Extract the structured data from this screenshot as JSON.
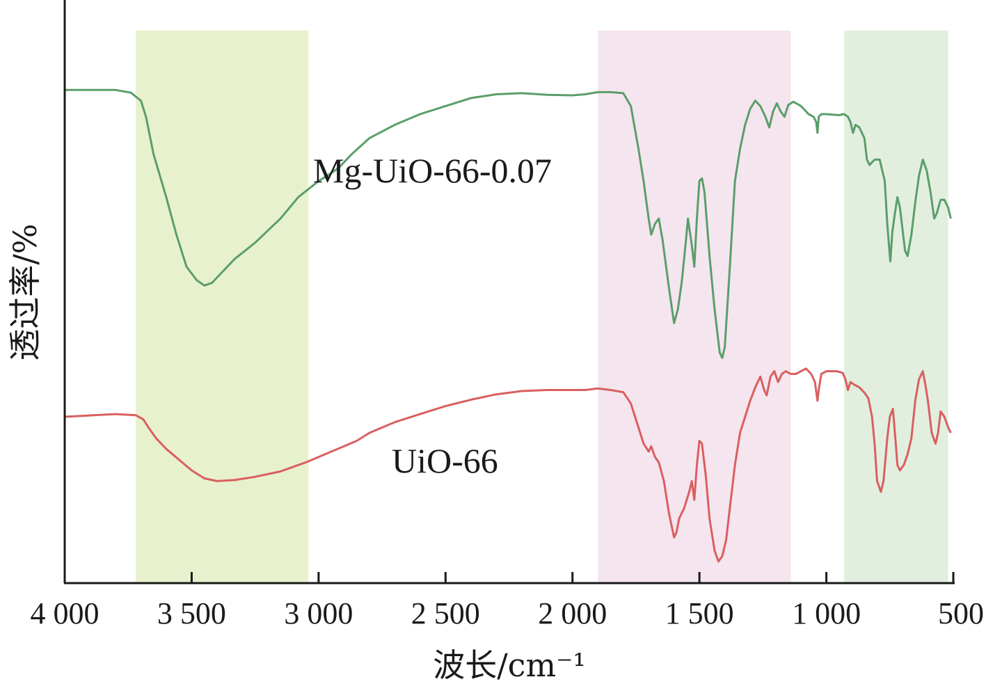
{
  "chart_data": {
    "type": "line",
    "xlabel": "波长/cm⁻¹",
    "ylabel": "透过率/%",
    "xlim": [
      4000,
      500
    ],
    "xaxis_reversed": true,
    "ylim": [
      0,
      100
    ],
    "y_ticks_shown": false,
    "grid": false,
    "legend": "none",
    "x_ticks": [
      {
        "value": 4000,
        "label": "4 000"
      },
      {
        "value": 3500,
        "label": "3 500"
      },
      {
        "value": 3000,
        "label": "3 000"
      },
      {
        "value": 2500,
        "label": "2 500"
      },
      {
        "value": 2000,
        "label": "2 000"
      },
      {
        "value": 1500,
        "label": "1 500"
      },
      {
        "value": 1000,
        "label": "1 000"
      },
      {
        "value": 500,
        "label": "500"
      }
    ],
    "highlight_bands": [
      {
        "x0": 3720,
        "x1": 3040,
        "color": "#e8f1cd"
      },
      {
        "x0": 1900,
        "x1": 1140,
        "color": "#f5e5ef"
      },
      {
        "x0": 930,
        "x1": 520,
        "color": "#e2efdf"
      }
    ],
    "series": [
      {
        "name": "Mg-UiO-66-0.07",
        "color": "#5a9e6a",
        "points": [
          [
            4000,
            91
          ],
          [
            3800,
            91
          ],
          [
            3740,
            90.5
          ],
          [
            3700,
            89
          ],
          [
            3680,
            86
          ],
          [
            3650,
            79
          ],
          [
            3600,
            71
          ],
          [
            3560,
            64
          ],
          [
            3520,
            58
          ],
          [
            3480,
            55.5
          ],
          [
            3450,
            54.5
          ],
          [
            3420,
            55
          ],
          [
            3380,
            57
          ],
          [
            3330,
            59.5
          ],
          [
            3250,
            62.5
          ],
          [
            3150,
            67
          ],
          [
            3080,
            71
          ],
          [
            3000,
            74
          ],
          [
            2950,
            75.5
          ],
          [
            2920,
            76.5
          ],
          [
            2870,
            79
          ],
          [
            2800,
            82
          ],
          [
            2700,
            84.5
          ],
          [
            2600,
            86.5
          ],
          [
            2500,
            88
          ],
          [
            2400,
            89.5
          ],
          [
            2300,
            90.2
          ],
          [
            2200,
            90.4
          ],
          [
            2100,
            90.1
          ],
          [
            2000,
            90
          ],
          [
            1950,
            90.2
          ],
          [
            1900,
            90.6
          ],
          [
            1850,
            90.6
          ],
          [
            1800,
            90.4
          ],
          [
            1770,
            88
          ],
          [
            1740,
            80
          ],
          [
            1720,
            74
          ],
          [
            1700,
            67
          ],
          [
            1690,
            64
          ],
          [
            1675,
            66
          ],
          [
            1660,
            67
          ],
          [
            1645,
            63
          ],
          [
            1620,
            54
          ],
          [
            1600,
            47.5
          ],
          [
            1585,
            50
          ],
          [
            1570,
            55
          ],
          [
            1555,
            62
          ],
          [
            1545,
            67
          ],
          [
            1530,
            62
          ],
          [
            1520,
            58
          ],
          [
            1510,
            67
          ],
          [
            1500,
            74
          ],
          [
            1490,
            74.5
          ],
          [
            1480,
            72
          ],
          [
            1460,
            60
          ],
          [
            1440,
            50
          ],
          [
            1420,
            42
          ],
          [
            1410,
            41
          ],
          [
            1400,
            43
          ],
          [
            1380,
            58
          ],
          [
            1360,
            74
          ],
          [
            1340,
            80
          ],
          [
            1320,
            84.5
          ],
          [
            1300,
            87.5
          ],
          [
            1280,
            89
          ],
          [
            1260,
            88
          ],
          [
            1240,
            86
          ],
          [
            1225,
            84
          ],
          [
            1210,
            87
          ],
          [
            1195,
            88.5
          ],
          [
            1180,
            87
          ],
          [
            1165,
            86
          ],
          [
            1150,
            88.2
          ],
          [
            1130,
            88.8
          ],
          [
            1100,
            88
          ],
          [
            1070,
            86.5
          ],
          [
            1050,
            86
          ],
          [
            1040,
            85
          ],
          [
            1035,
            83
          ],
          [
            1030,
            86
          ],
          [
            1020,
            86.5
          ],
          [
            1000,
            86.5
          ],
          [
            950,
            86.3
          ],
          [
            930,
            86.5
          ],
          [
            915,
            86
          ],
          [
            905,
            85
          ],
          [
            895,
            83
          ],
          [
            885,
            84.5
          ],
          [
            870,
            84
          ],
          [
            850,
            82
          ],
          [
            840,
            78
          ],
          [
            830,
            77
          ],
          [
            810,
            78
          ],
          [
            790,
            78
          ],
          [
            770,
            74
          ],
          [
            760,
            66
          ],
          [
            748,
            59
          ],
          [
            740,
            64.5
          ],
          [
            730,
            68
          ],
          [
            720,
            71
          ],
          [
            710,
            69
          ],
          [
            700,
            65
          ],
          [
            690,
            61
          ],
          [
            680,
            60
          ],
          [
            665,
            64
          ],
          [
            650,
            70
          ],
          [
            635,
            75
          ],
          [
            620,
            78
          ],
          [
            605,
            76
          ],
          [
            590,
            72
          ],
          [
            575,
            67
          ],
          [
            565,
            68
          ],
          [
            550,
            70.5
          ],
          [
            535,
            70.5
          ],
          [
            520,
            69
          ],
          [
            510,
            67
          ]
        ]
      },
      {
        "name": "UiO-66",
        "color": "#d95f5f",
        "points": [
          [
            4000,
            30
          ],
          [
            3800,
            30.5
          ],
          [
            3720,
            30.3
          ],
          [
            3690,
            29.5
          ],
          [
            3670,
            28
          ],
          [
            3640,
            26
          ],
          [
            3600,
            24
          ],
          [
            3550,
            22
          ],
          [
            3500,
            20
          ],
          [
            3450,
            18.5
          ],
          [
            3400,
            18
          ],
          [
            3330,
            18.2
          ],
          [
            3250,
            18.8
          ],
          [
            3150,
            19.8
          ],
          [
            3080,
            21
          ],
          [
            3050,
            21.5
          ],
          [
            3000,
            22.5
          ],
          [
            2950,
            23.5
          ],
          [
            2850,
            25.5
          ],
          [
            2800,
            27
          ],
          [
            2700,
            29
          ],
          [
            2600,
            30.5
          ],
          [
            2500,
            32
          ],
          [
            2400,
            33.2
          ],
          [
            2300,
            34.2
          ],
          [
            2200,
            34.8
          ],
          [
            2100,
            35
          ],
          [
            2000,
            35
          ],
          [
            1950,
            35
          ],
          [
            1900,
            35.3
          ],
          [
            1850,
            35
          ],
          [
            1800,
            34.6
          ],
          [
            1770,
            32.5
          ],
          [
            1740,
            28
          ],
          [
            1720,
            25
          ],
          [
            1700,
            23.5
          ],
          [
            1690,
            24.5
          ],
          [
            1675,
            22.5
          ],
          [
            1660,
            21.5
          ],
          [
            1640,
            18
          ],
          [
            1620,
            12
          ],
          [
            1600,
            7.5
          ],
          [
            1590,
            8.5
          ],
          [
            1580,
            11
          ],
          [
            1560,
            13
          ],
          [
            1540,
            16
          ],
          [
            1530,
            18
          ],
          [
            1520,
            14.5
          ],
          [
            1510,
            21
          ],
          [
            1500,
            25.5
          ],
          [
            1490,
            25
          ],
          [
            1475,
            19
          ],
          [
            1460,
            11
          ],
          [
            1440,
            5
          ],
          [
            1425,
            3
          ],
          [
            1410,
            4
          ],
          [
            1395,
            7
          ],
          [
            1380,
            13
          ],
          [
            1360,
            21
          ],
          [
            1340,
            27
          ],
          [
            1320,
            30
          ],
          [
            1300,
            33
          ],
          [
            1280,
            35.5
          ],
          [
            1260,
            37.5
          ],
          [
            1245,
            35
          ],
          [
            1235,
            34
          ],
          [
            1220,
            37.5
          ],
          [
            1205,
            38.5
          ],
          [
            1190,
            36.5
          ],
          [
            1175,
            38
          ],
          [
            1160,
            38.5
          ],
          [
            1140,
            38
          ],
          [
            1120,
            38
          ],
          [
            1100,
            38.5
          ],
          [
            1080,
            39
          ],
          [
            1060,
            38
          ],
          [
            1045,
            36.5
          ],
          [
            1035,
            33
          ],
          [
            1030,
            35
          ],
          [
            1020,
            38
          ],
          [
            1000,
            38.5
          ],
          [
            960,
            38.5
          ],
          [
            935,
            38.2
          ],
          [
            925,
            37
          ],
          [
            915,
            35
          ],
          [
            905,
            36.5
          ],
          [
            890,
            36
          ],
          [
            870,
            35.5
          ],
          [
            850,
            34.5
          ],
          [
            835,
            33.5
          ],
          [
            820,
            30
          ],
          [
            810,
            25
          ],
          [
            800,
            18
          ],
          [
            785,
            16
          ],
          [
            775,
            18
          ],
          [
            760,
            26
          ],
          [
            750,
            30
          ],
          [
            738,
            31.5
          ],
          [
            730,
            27
          ],
          [
            720,
            21
          ],
          [
            710,
            20
          ],
          [
            695,
            21
          ],
          [
            680,
            23
          ],
          [
            665,
            26
          ],
          [
            650,
            33
          ],
          [
            635,
            37
          ],
          [
            620,
            38.5
          ],
          [
            610,
            36
          ],
          [
            600,
            33
          ],
          [
            585,
            27
          ],
          [
            570,
            25
          ],
          [
            560,
            27
          ],
          [
            550,
            31
          ],
          [
            535,
            30
          ],
          [
            520,
            28
          ],
          [
            510,
            27
          ]
        ]
      }
    ],
    "annotations": [
      {
        "text": "Mg-UiO-66-0.07",
        "near_series": "Mg-UiO-66-0.07"
      },
      {
        "text": "UiO-66",
        "near_series": "UiO-66"
      }
    ]
  }
}
